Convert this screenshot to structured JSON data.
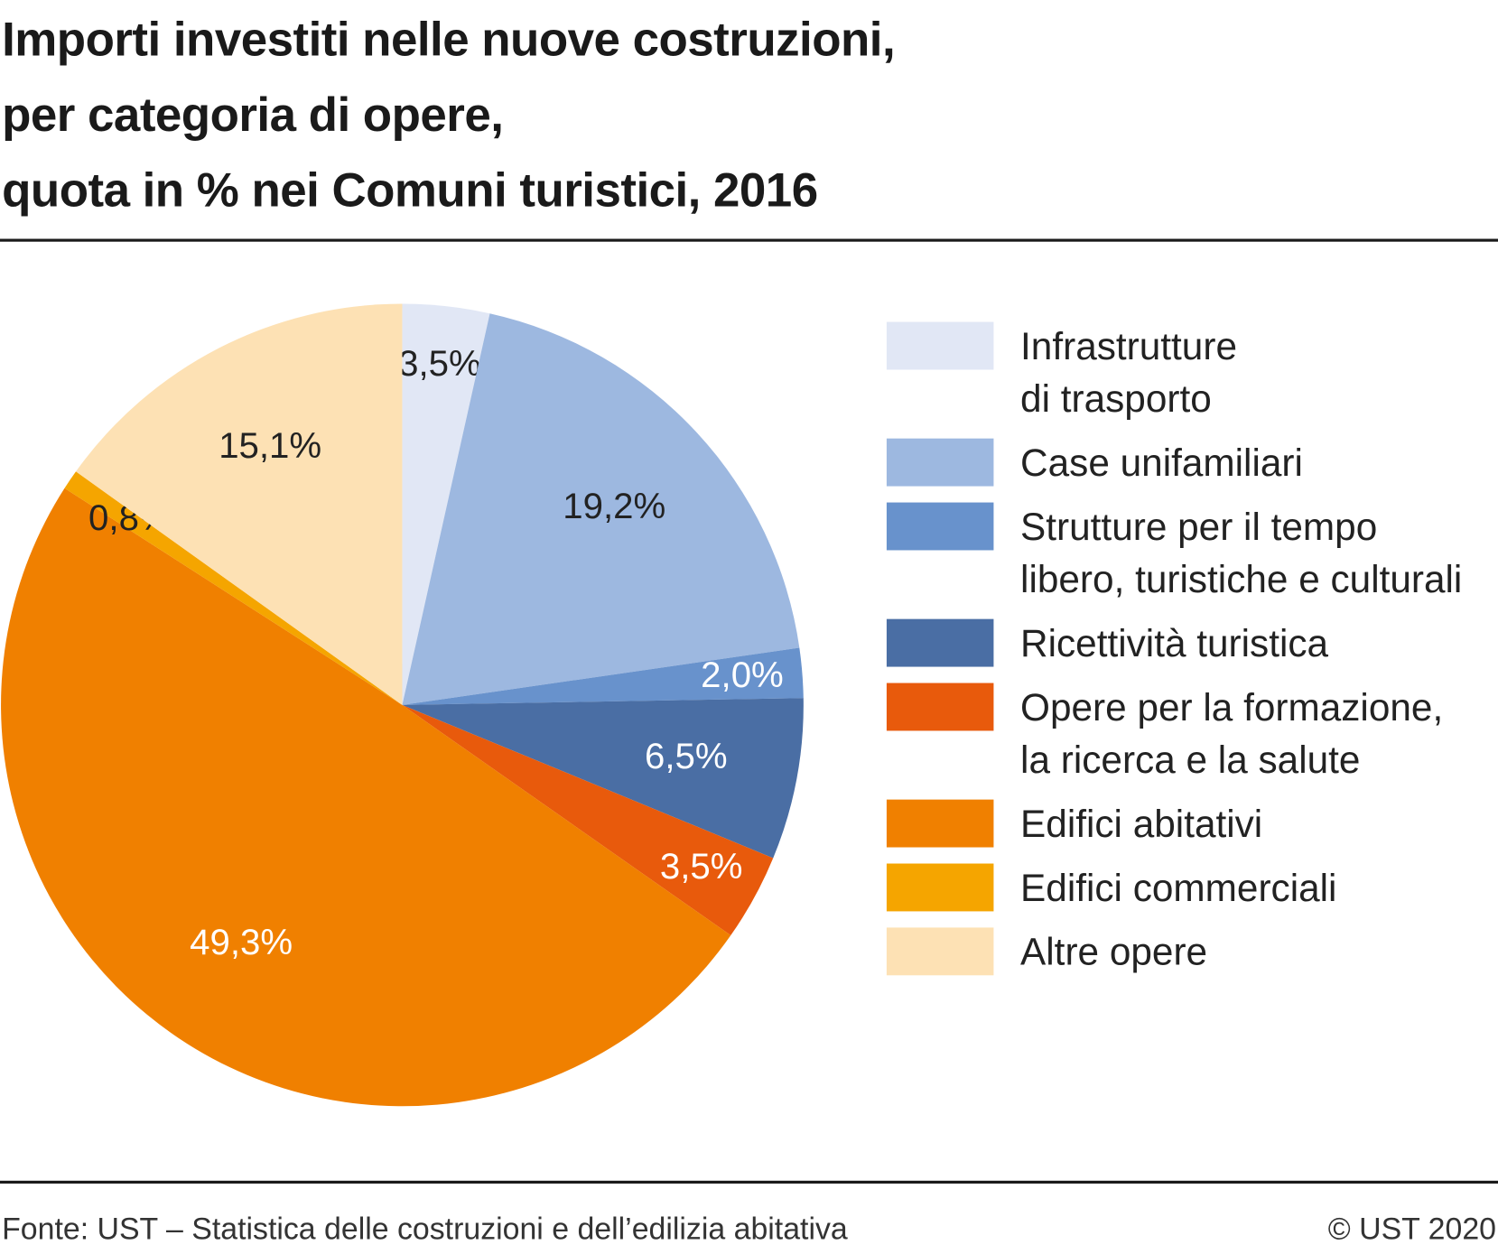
{
  "chart_data": {
    "type": "pie",
    "title": "Importi investiti nelle nuove costruzioni,\nper categoria di opere,\nquota in % nei Comuni turistici, 2016",
    "categories": [
      "Infrastrutture\ndi trasporto",
      "Case unifamiliari",
      "Strutture per il tempo\nlibero, turistiche e culturali",
      "Ricettività turistica",
      "Opere per la formazione,\nla ricerca e la salute",
      "Edifici abitativi",
      "Edifici commerciali",
      "Altre opere"
    ],
    "values": [
      3.5,
      19.2,
      2.0,
      6.5,
      3.5,
      49.3,
      0.8,
      15.1
    ],
    "value_labels": [
      "3,5%",
      "19,2%",
      "2,0%",
      "6,5%",
      "3,5%",
      "49,3%",
      "0,8%",
      "15,1%"
    ],
    "colors": [
      "#e1e7f5",
      "#9db8e0",
      "#6892cc",
      "#4a6ea4",
      "#e85a0c",
      "#f08000",
      "#f5a500",
      "#fde1b4"
    ],
    "source": "Fonte: UST – Statistica delle costruzioni e dell’edilizia abitativa",
    "copyright": "© UST 2020"
  }
}
